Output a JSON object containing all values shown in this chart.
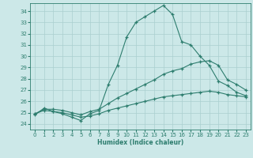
{
  "xlabel": "Humidex (Indice chaleur)",
  "xlim": [
    -0.5,
    23.5
  ],
  "ylim": [
    23.5,
    34.7
  ],
  "xticks": [
    0,
    1,
    2,
    3,
    4,
    5,
    6,
    7,
    8,
    9,
    10,
    11,
    12,
    13,
    14,
    15,
    16,
    17,
    18,
    19,
    20,
    21,
    22,
    23
  ],
  "yticks": [
    24,
    25,
    26,
    27,
    28,
    29,
    30,
    31,
    32,
    33,
    34
  ],
  "bg_color": "#cce8e8",
  "line_color": "#2d7d6e",
  "grid_color": "#aacfcf",
  "series": {
    "main": [
      24.8,
      25.4,
      25.1,
      24.9,
      24.6,
      24.3,
      24.9,
      25.2,
      27.5,
      29.2,
      31.7,
      33.0,
      33.5,
      34.0,
      34.5,
      33.7,
      31.3,
      31.0,
      30.0,
      29.2,
      27.8,
      27.4,
      26.8,
      26.5
    ],
    "upper": [
      24.9,
      25.3,
      25.3,
      25.2,
      25.0,
      24.8,
      25.1,
      25.3,
      25.8,
      26.3,
      26.7,
      27.1,
      27.5,
      27.9,
      28.4,
      28.7,
      28.9,
      29.3,
      29.5,
      29.6,
      29.2,
      27.9,
      27.5,
      27.0
    ],
    "lower": [
      24.9,
      25.2,
      25.1,
      25.0,
      24.8,
      24.6,
      24.7,
      24.9,
      25.2,
      25.4,
      25.6,
      25.8,
      26.0,
      26.2,
      26.4,
      26.5,
      26.6,
      26.7,
      26.8,
      26.9,
      26.8,
      26.6,
      26.5,
      26.4
    ]
  }
}
